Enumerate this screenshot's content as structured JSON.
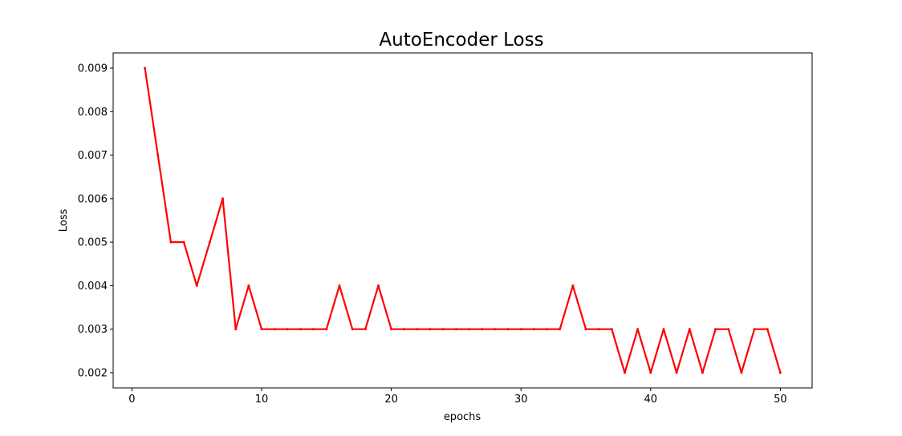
{
  "chart_data": {
    "type": "line",
    "title": "AutoEncoder Loss",
    "xlabel": "epochs",
    "ylabel": "Loss",
    "xlim": [
      -1.45,
      52.45
    ],
    "ylim": [
      0.00165,
      0.00935
    ],
    "xticks": [
      0,
      10,
      20,
      30,
      40,
      50
    ],
    "xtick_labels": [
      "0",
      "10",
      "20",
      "30",
      "40",
      "50"
    ],
    "yticks": [
      0.002,
      0.003,
      0.004,
      0.005,
      0.006,
      0.007,
      0.008,
      0.009
    ],
    "ytick_labels": [
      "0.002",
      "0.003",
      "0.004",
      "0.005",
      "0.006",
      "0.007",
      "0.008",
      "0.009"
    ],
    "grid": false,
    "legend": "none",
    "series": [
      {
        "color": "#ff0000",
        "x": [
          1,
          2,
          3,
          4,
          5,
          6,
          7,
          8,
          9,
          10,
          11,
          12,
          13,
          14,
          15,
          16,
          17,
          18,
          19,
          20,
          21,
          22,
          23,
          24,
          25,
          26,
          27,
          28,
          29,
          30,
          31,
          32,
          33,
          34,
          35,
          36,
          37,
          38,
          39,
          40,
          41,
          42,
          43,
          44,
          45,
          46,
          47,
          48,
          49,
          50
        ],
        "values": [
          0.009,
          0.007,
          0.005,
          0.005,
          0.004,
          0.005,
          0.006,
          0.003,
          0.004,
          0.003,
          0.003,
          0.003,
          0.003,
          0.003,
          0.003,
          0.004,
          0.003,
          0.003,
          0.004,
          0.003,
          0.003,
          0.003,
          0.003,
          0.003,
          0.003,
          0.003,
          0.003,
          0.003,
          0.003,
          0.003,
          0.003,
          0.003,
          0.003,
          0.004,
          0.003,
          0.003,
          0.003,
          0.002,
          0.003,
          0.002,
          0.003,
          0.002,
          0.003,
          0.002,
          0.003,
          0.003,
          0.002,
          0.003,
          0.003,
          0.002
        ]
      }
    ]
  }
}
